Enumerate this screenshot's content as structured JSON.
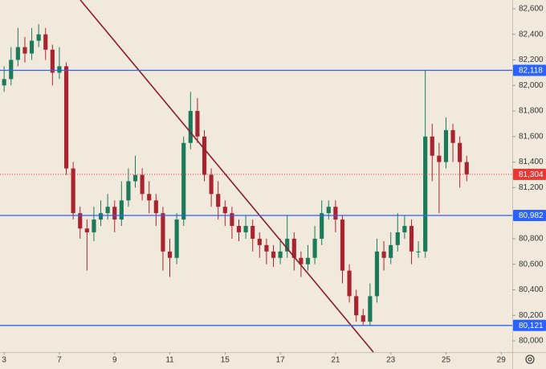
{
  "chart_data": {
    "type": "candlestick",
    "x": [
      0,
      0.25,
      0.5,
      0.75,
      1,
      1.25,
      1.5,
      1.75,
      2,
      2.25,
      2.5,
      2.75,
      3,
      3.25,
      3.5,
      3.75,
      4,
      4.25,
      4.5,
      4.75,
      5,
      5.25,
      5.5,
      5.75,
      6,
      6.25,
      6.5,
      6.75,
      7,
      7.25,
      7.5,
      7.75,
      8,
      8.25,
      8.5,
      8.75,
      9,
      9.25,
      9.5,
      9.75,
      10,
      10.25,
      10.5,
      10.75,
      11,
      11.25,
      11.5,
      11.75,
      12,
      12.25,
      12.5,
      12.75,
      13,
      13.25,
      13.5,
      13.75,
      14,
      14.25,
      14.5,
      14.75,
      15,
      15.25,
      15.5,
      15.75,
      16,
      16.25,
      16.5,
      16.75
    ],
    "open": [
      82000,
      82050,
      82200,
      82300,
      82250,
      82350,
      82400,
      82280,
      82100,
      82150,
      81350,
      81000,
      80880,
      80850,
      80950,
      81000,
      81050,
      80950,
      81100,
      81250,
      81300,
      81150,
      81100,
      81000,
      80700,
      80650,
      80950,
      81550,
      81800,
      81600,
      81300,
      81150,
      81050,
      81000,
      80900,
      80850,
      80900,
      80800,
      80750,
      80700,
      80650,
      80700,
      80800,
      80650,
      80600,
      80650,
      80800,
      81000,
      81050,
      80950,
      80550,
      80350,
      80200,
      80150,
      80350,
      80700,
      80650,
      80750,
      80850,
      80900,
      80700,
      80700,
      81600,
      81450,
      81400,
      81650,
      81550,
      81400
    ],
    "high": [
      82150,
      82300,
      82450,
      82380,
      82450,
      82480,
      82450,
      82320,
      82300,
      82180,
      81400,
      81050,
      80950,
      81050,
      81100,
      81150,
      81100,
      81250,
      81350,
      81450,
      81350,
      81250,
      81150,
      81050,
      80800,
      81000,
      81600,
      81950,
      81900,
      81650,
      81350,
      81250,
      81100,
      81050,
      80950,
      80980,
      80950,
      80850,
      80800,
      80750,
      80800,
      80980,
      80850,
      80700,
      80750,
      80900,
      81100,
      81100,
      81100,
      80980,
      80600,
      80400,
      80250,
      80450,
      80800,
      80780,
      80850,
      81000,
      80980,
      80950,
      80780,
      82118,
      81700,
      81550,
      81750,
      81700,
      81600,
      81450
    ],
    "low": [
      81950,
      82000,
      82150,
      82180,
      82200,
      82300,
      82200,
      82000,
      82050,
      81300,
      80950,
      80800,
      80550,
      80780,
      80900,
      80950,
      80850,
      80900,
      81050,
      81200,
      81100,
      81000,
      80900,
      80550,
      80500,
      80600,
      80900,
      81500,
      81550,
      81250,
      81050,
      80950,
      80900,
      80800,
      80780,
      80800,
      80700,
      80650,
      80600,
      80580,
      80600,
      80650,
      80550,
      80500,
      80550,
      80600,
      80750,
      80950,
      80850,
      80450,
      80300,
      80150,
      80121,
      80121,
      80300,
      80550,
      80600,
      80700,
      80800,
      80600,
      80650,
      80650,
      81250,
      81000,
      81350,
      81400,
      81200,
      81250
    ],
    "close": [
      82050,
      82200,
      82300,
      82250,
      82350,
      82400,
      82280,
      82100,
      82150,
      81350,
      81000,
      80880,
      80850,
      80950,
      81000,
      81050,
      80950,
      81100,
      81250,
      81300,
      81150,
      81100,
      81000,
      80700,
      80650,
      80950,
      81550,
      81800,
      81600,
      81300,
      81150,
      81050,
      81000,
      80900,
      80850,
      80900,
      80800,
      80750,
      80700,
      80650,
      80700,
      80800,
      80650,
      80600,
      80650,
      80800,
      81000,
      81050,
      80950,
      80550,
      80350,
      80200,
      80150,
      80350,
      80700,
      80650,
      80750,
      80850,
      80900,
      80700,
      80700,
      81600,
      81450,
      81400,
      81650,
      81550,
      81400,
      81304
    ],
    "up_color": "#1a7a5a",
    "down_color": "#a8242f",
    "xlim": [
      -0.15,
      18.4
    ],
    "xticks": [
      {
        "value": 0,
        "label": "3"
      },
      {
        "value": 2,
        "label": "7"
      },
      {
        "value": 4,
        "label": "9"
      },
      {
        "value": 6,
        "label": "11"
      },
      {
        "value": 8,
        "label": "15"
      },
      {
        "value": 10,
        "label": "17"
      },
      {
        "value": 12,
        "label": "21"
      },
      {
        "value": 14,
        "label": "23"
      },
      {
        "value": 16,
        "label": "25"
      },
      {
        "value": 18,
        "label": "29"
      }
    ],
    "ylim": [
      79912,
      82669
    ],
    "yticks": [
      {
        "value": 80000,
        "label": "80,000"
      },
      {
        "value": 80200,
        "label": "80,200"
      },
      {
        "value": 80400,
        "label": "80,400"
      },
      {
        "value": 80600,
        "label": "80,600"
      },
      {
        "value": 80800,
        "label": "80,800"
      },
      {
        "value": 81200,
        "label": "81,200"
      },
      {
        "value": 81400,
        "label": "81,400"
      },
      {
        "value": 81600,
        "label": "81,600"
      },
      {
        "value": 81800,
        "label": "81,800"
      },
      {
        "value": 82000,
        "label": "82,000"
      },
      {
        "value": 82200,
        "label": "82,200"
      },
      {
        "value": 82400,
        "label": "82,400"
      },
      {
        "value": 82600,
        "label": "82,600"
      }
    ],
    "levels": [
      {
        "value": 82118,
        "label": "82,118",
        "color": "#2962ff",
        "style": "solid"
      },
      {
        "value": 80982,
        "label": "80,982",
        "color": "#2962ff",
        "style": "solid"
      },
      {
        "value": 80121,
        "label": "80,121",
        "color": "#2962ff",
        "style": "solid"
      },
      {
        "value": 81304,
        "label": "81,304",
        "color": "#e53935",
        "style": "dotted"
      }
    ],
    "trendline": {
      "x": [
        2.76,
        13.37
      ],
      "y": [
        82669,
        79912
      ],
      "color": "#8b1a2b"
    }
  }
}
